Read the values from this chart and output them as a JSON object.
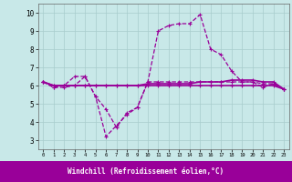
{
  "x": [
    0,
    1,
    2,
    3,
    4,
    5,
    6,
    7,
    8,
    9,
    10,
    11,
    12,
    13,
    14,
    15,
    16,
    17,
    18,
    19,
    20,
    21,
    22,
    23
  ],
  "line1": [
    6.2,
    5.9,
    5.9,
    6.0,
    6.5,
    5.4,
    4.7,
    3.7,
    4.5,
    4.8,
    6.2,
    9.0,
    9.3,
    9.4,
    9.4,
    9.9,
    8.0,
    7.7,
    6.8,
    6.2,
    6.2,
    5.9,
    6.1,
    5.8
  ],
  "line2": [
    6.2,
    5.9,
    6.0,
    6.5,
    6.5,
    5.4,
    3.2,
    3.8,
    4.4,
    4.8,
    6.2,
    6.2,
    6.2,
    6.2,
    6.2,
    6.2,
    6.2,
    6.2,
    6.2,
    6.2,
    6.2,
    6.1,
    6.1,
    5.8
  ],
  "line3": [
    6.2,
    6.0,
    6.0,
    6.0,
    6.0,
    6.0,
    6.0,
    6.0,
    6.0,
    6.0,
    6.0,
    6.0,
    6.0,
    6.0,
    6.0,
    6.0,
    6.0,
    6.0,
    6.0,
    6.0,
    6.0,
    6.0,
    6.0,
    5.8
  ],
  "line4": [
    6.2,
    6.0,
    6.0,
    6.0,
    6.0,
    6.0,
    6.0,
    6.0,
    6.0,
    6.0,
    6.1,
    6.1,
    6.1,
    6.1,
    6.1,
    6.2,
    6.2,
    6.2,
    6.3,
    6.3,
    6.3,
    6.2,
    6.2,
    5.8
  ],
  "line_color": "#990099",
  "bg_color": "#c8e8e8",
  "grid_color": "#a8cccc",
  "xlabel": "Windchill (Refroidissement éolien,°C)",
  "xlabel_bg": "#990099",
  "xlabel_fg": "#ffffff",
  "ylim": [
    2.5,
    10.5
  ],
  "xlim": [
    -0.5,
    23.5
  ],
  "yticks": [
    3,
    4,
    5,
    6,
    7,
    8,
    9,
    10
  ],
  "xticks": [
    0,
    1,
    2,
    3,
    4,
    5,
    6,
    7,
    8,
    9,
    10,
    11,
    12,
    13,
    14,
    15,
    16,
    17,
    18,
    19,
    20,
    21,
    22,
    23
  ]
}
